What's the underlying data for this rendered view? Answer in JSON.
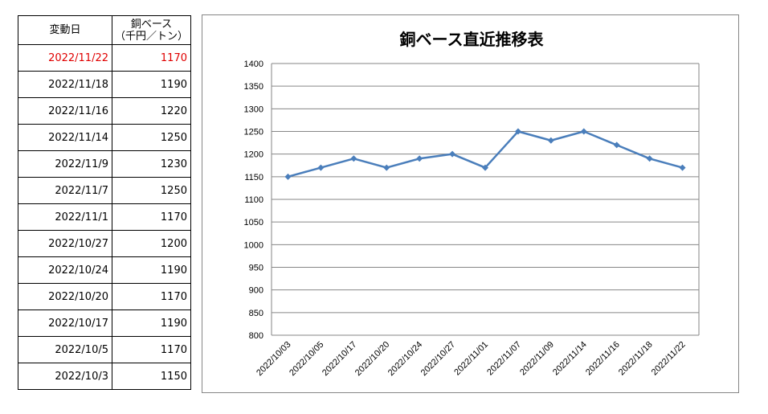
{
  "table": {
    "header_date": "変動日",
    "header_value_line1": "銅ベース",
    "header_value_line2": "（千円／トン）",
    "rows": [
      {
        "date": "2022/11/22",
        "value": "1170",
        "highlight": true
      },
      {
        "date": "2022/11/18",
        "value": "1190"
      },
      {
        "date": "2022/11/16",
        "value": "1220"
      },
      {
        "date": "2022/11/14",
        "value": "1250"
      },
      {
        "date": "2022/11/9",
        "value": "1230"
      },
      {
        "date": "2022/11/7",
        "value": "1250"
      },
      {
        "date": "2022/11/1",
        "value": "1170"
      },
      {
        "date": "2022/10/27",
        "value": "1200"
      },
      {
        "date": "2022/10/24",
        "value": "1190"
      },
      {
        "date": "2022/10/20",
        "value": "1170"
      },
      {
        "date": "2022/10/17",
        "value": "1190"
      },
      {
        "date": "2022/10/5",
        "value": "1170"
      },
      {
        "date": "2022/10/3",
        "value": "1150"
      }
    ]
  },
  "colors": {
    "highlight": "#e00000",
    "line": "#4a7ebb",
    "grid": "#868686"
  },
  "chart_data": {
    "type": "line",
    "title": "銅ベース直近推移表",
    "categories": [
      "2022/10/03",
      "2022/10/05",
      "2022/10/17",
      "2022/10/20",
      "2022/10/24",
      "2022/10/27",
      "2022/11/01",
      "2022/11/07",
      "2022/11/09",
      "2022/11/14",
      "2022/11/16",
      "2022/11/18",
      "2022/11/22"
    ],
    "series": [
      {
        "values": [
          1150,
          1170,
          1190,
          1170,
          1190,
          1200,
          1170,
          1250,
          1230,
          1250,
          1220,
          1190,
          1170
        ]
      }
    ],
    "yticks": [
      800,
      850,
      900,
      950,
      1000,
      1050,
      1100,
      1150,
      1200,
      1250,
      1300,
      1350,
      1400
    ],
    "ylim": [
      800,
      1400
    ],
    "grid": true,
    "legend": "none",
    "marker": "diamond"
  }
}
